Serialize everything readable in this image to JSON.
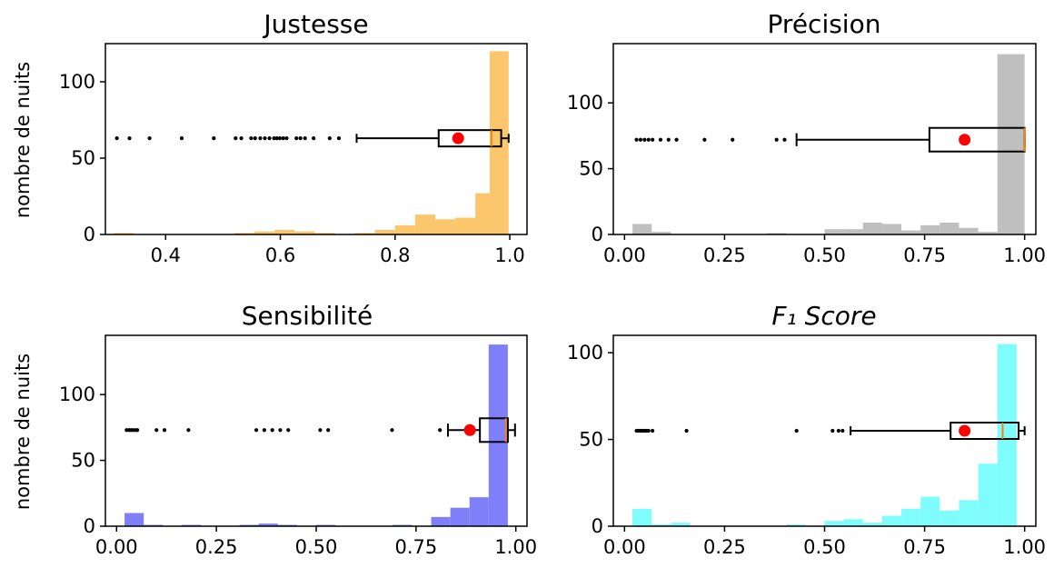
{
  "chart_data": [
    {
      "type": "histogram",
      "title": "Justesse",
      "ylabel": "nombre de nuits",
      "color": "#fcc66c",
      "xlim": [
        0.295,
        1.03
      ],
      "ylim": [
        0,
        125
      ],
      "xticks": [
        {
          "v": 0.4,
          "label": "0.4"
        },
        {
          "v": 0.6,
          "label": "0.6"
        },
        {
          "v": 0.8,
          "label": "0.8"
        },
        {
          "v": 1.0,
          "label": "1.0"
        }
      ],
      "yticks": [
        {
          "v": 0,
          "label": "0"
        },
        {
          "v": 50,
          "label": "50"
        },
        {
          "v": 100,
          "label": "100"
        }
      ],
      "bins": [
        [
          0.31,
          0.345,
          1
        ],
        [
          0.345,
          0.38,
          0
        ],
        [
          0.38,
          0.415,
          0
        ],
        [
          0.415,
          0.45,
          0
        ],
        [
          0.45,
          0.485,
          0
        ],
        [
          0.485,
          0.52,
          0
        ],
        [
          0.52,
          0.555,
          1
        ],
        [
          0.555,
          0.59,
          2
        ],
        [
          0.59,
          0.625,
          3
        ],
        [
          0.625,
          0.66,
          2
        ],
        [
          0.66,
          0.695,
          1
        ],
        [
          0.695,
          0.73,
          0
        ],
        [
          0.73,
          0.765,
          1
        ],
        [
          0.765,
          0.8,
          3
        ],
        [
          0.8,
          0.835,
          6
        ],
        [
          0.835,
          0.87,
          13
        ],
        [
          0.87,
          0.905,
          10
        ],
        [
          0.905,
          0.94,
          11
        ],
        [
          0.94,
          0.965,
          27
        ],
        [
          0.965,
          0.998,
          120
        ]
      ],
      "boxplot": {
        "y": 63,
        "box_half_height": 9,
        "whisker_low": 0.733,
        "q1": 0.876,
        "median": 0.968,
        "q3": 0.985,
        "whisker_high": 0.998,
        "mean": 0.91,
        "outliers": [
          0.315,
          0.337,
          0.372,
          0.428,
          0.484,
          0.522,
          0.532,
          0.549,
          0.556,
          0.565,
          0.573,
          0.581,
          0.589,
          0.594,
          0.599,
          0.605,
          0.611,
          0.628,
          0.635,
          0.643,
          0.658,
          0.686,
          0.702
        ]
      }
    },
    {
      "type": "histogram",
      "title": "Précision",
      "color": "#bfbfbf",
      "xlim": [
        -0.028,
        1.028
      ],
      "ylim": [
        0,
        145
      ],
      "xticks": [
        {
          "v": 0,
          "label": "0.00"
        },
        {
          "v": 0.25,
          "label": "0.25"
        },
        {
          "v": 0.5,
          "label": "0.50"
        },
        {
          "v": 0.75,
          "label": "0.75"
        },
        {
          "v": 1.0,
          "label": "1.00"
        }
      ],
      "yticks": [
        {
          "v": 0,
          "label": "0"
        },
        {
          "v": 50,
          "label": "50"
        },
        {
          "v": 100,
          "label": "100"
        }
      ],
      "bins": [
        [
          0.02,
          0.068,
          8
        ],
        [
          0.068,
          0.116,
          2
        ],
        [
          0.116,
          0.164,
          0
        ],
        [
          0.164,
          0.212,
          0
        ],
        [
          0.212,
          0.26,
          0
        ],
        [
          0.26,
          0.308,
          0
        ],
        [
          0.308,
          0.356,
          0
        ],
        [
          0.356,
          0.404,
          1
        ],
        [
          0.404,
          0.452,
          0
        ],
        [
          0.452,
          0.5,
          0
        ],
        [
          0.5,
          0.548,
          4
        ],
        [
          0.548,
          0.596,
          4
        ],
        [
          0.596,
          0.644,
          9
        ],
        [
          0.644,
          0.692,
          8
        ],
        [
          0.692,
          0.74,
          3
        ],
        [
          0.74,
          0.788,
          7
        ],
        [
          0.788,
          0.836,
          9
        ],
        [
          0.836,
          0.884,
          5
        ],
        [
          0.884,
          0.932,
          2
        ],
        [
          0.932,
          1.0,
          137
        ]
      ],
      "boxplot": {
        "y": 72,
        "box_half_height": 13,
        "whisker_low": 0.43,
        "q1": 0.762,
        "median": 1.0,
        "q3": 1.0,
        "whisker_high": 1.0,
        "mean": 0.85,
        "outliers": [
          0.03,
          0.04,
          0.05,
          0.06,
          0.07,
          0.09,
          0.11,
          0.13,
          0.2,
          0.27,
          0.38,
          0.4
        ]
      }
    },
    {
      "type": "histogram",
      "title": "Sensibilité",
      "ylabel": "nombre de nuits",
      "color": "#7f7ffa",
      "xlim": [
        -0.028,
        1.028
      ],
      "ylim": [
        0,
        145
      ],
      "xticks": [
        {
          "v": 0,
          "label": "0.00"
        },
        {
          "v": 0.25,
          "label": "0.25"
        },
        {
          "v": 0.5,
          "label": "0.50"
        },
        {
          "v": 0.75,
          "label": "0.75"
        },
        {
          "v": 1.0,
          "label": "1.00"
        }
      ],
      "yticks": [
        {
          "v": 0,
          "label": "0"
        },
        {
          "v": 50,
          "label": "50"
        },
        {
          "v": 100,
          "label": "100"
        }
      ],
      "bins": [
        [
          0.02,
          0.068,
          10
        ],
        [
          0.068,
          0.116,
          1
        ],
        [
          0.116,
          0.164,
          0
        ],
        [
          0.164,
          0.212,
          1
        ],
        [
          0.212,
          0.26,
          0
        ],
        [
          0.26,
          0.308,
          0
        ],
        [
          0.308,
          0.356,
          1
        ],
        [
          0.356,
          0.404,
          2
        ],
        [
          0.404,
          0.452,
          1
        ],
        [
          0.452,
          0.5,
          0
        ],
        [
          0.5,
          0.548,
          1
        ],
        [
          0.548,
          0.596,
          0
        ],
        [
          0.596,
          0.644,
          0
        ],
        [
          0.644,
          0.692,
          0
        ],
        [
          0.692,
          0.74,
          1
        ],
        [
          0.74,
          0.788,
          0
        ],
        [
          0.788,
          0.836,
          7
        ],
        [
          0.836,
          0.884,
          14
        ],
        [
          0.884,
          0.932,
          22
        ],
        [
          0.932,
          0.98,
          138
        ]
      ],
      "boxplot": {
        "y": 73,
        "box_half_height": 13,
        "whisker_low": 0.83,
        "q1": 0.91,
        "median": 0.975,
        "q3": 0.98,
        "whisker_high": 0.998,
        "mean": 0.885,
        "outliers": [
          0.025,
          0.031,
          0.036,
          0.041,
          0.047,
          0.052,
          0.1,
          0.12,
          0.18,
          0.35,
          0.37,
          0.39,
          0.41,
          0.43,
          0.51,
          0.53,
          0.69,
          0.81
        ]
      }
    },
    {
      "type": "histogram",
      "title": "F₁ Score",
      "color": "#7ffcfc",
      "xlim": [
        -0.028,
        1.028
      ],
      "ylim": [
        0,
        110
      ],
      "xticks": [
        {
          "v": 0,
          "label": "0.00"
        },
        {
          "v": 0.25,
          "label": "0.25"
        },
        {
          "v": 0.5,
          "label": "0.50"
        },
        {
          "v": 0.75,
          "label": "0.75"
        },
        {
          "v": 1.0,
          "label": "1.00"
        }
      ],
      "yticks": [
        {
          "v": 0,
          "label": "0"
        },
        {
          "v": 50,
          "label": "50"
        },
        {
          "v": 100,
          "label": "100"
        }
      ],
      "bins": [
        [
          0.02,
          0.068,
          10
        ],
        [
          0.068,
          0.116,
          1
        ],
        [
          0.116,
          0.164,
          2
        ],
        [
          0.164,
          0.212,
          0
        ],
        [
          0.212,
          0.26,
          0
        ],
        [
          0.26,
          0.308,
          0
        ],
        [
          0.308,
          0.356,
          0
        ],
        [
          0.356,
          0.404,
          0
        ],
        [
          0.404,
          0.452,
          1
        ],
        [
          0.452,
          0.5,
          0
        ],
        [
          0.5,
          0.548,
          3
        ],
        [
          0.548,
          0.596,
          4
        ],
        [
          0.596,
          0.644,
          2
        ],
        [
          0.644,
          0.692,
          6
        ],
        [
          0.692,
          0.74,
          10
        ],
        [
          0.74,
          0.788,
          17
        ],
        [
          0.788,
          0.836,
          9
        ],
        [
          0.836,
          0.884,
          15
        ],
        [
          0.884,
          0.932,
          36
        ],
        [
          0.932,
          0.98,
          105
        ]
      ],
      "boxplot": {
        "y": 55,
        "box_half_height": 9,
        "whisker_low": 0.565,
        "q1": 0.815,
        "median": 0.945,
        "q3": 0.985,
        "whisker_high": 1.0,
        "mean": 0.85,
        "outliers": [
          0.03,
          0.035,
          0.04,
          0.045,
          0.05,
          0.055,
          0.06,
          0.07,
          0.155,
          0.43,
          0.52,
          0.535,
          0.545
        ]
      }
    }
  ]
}
